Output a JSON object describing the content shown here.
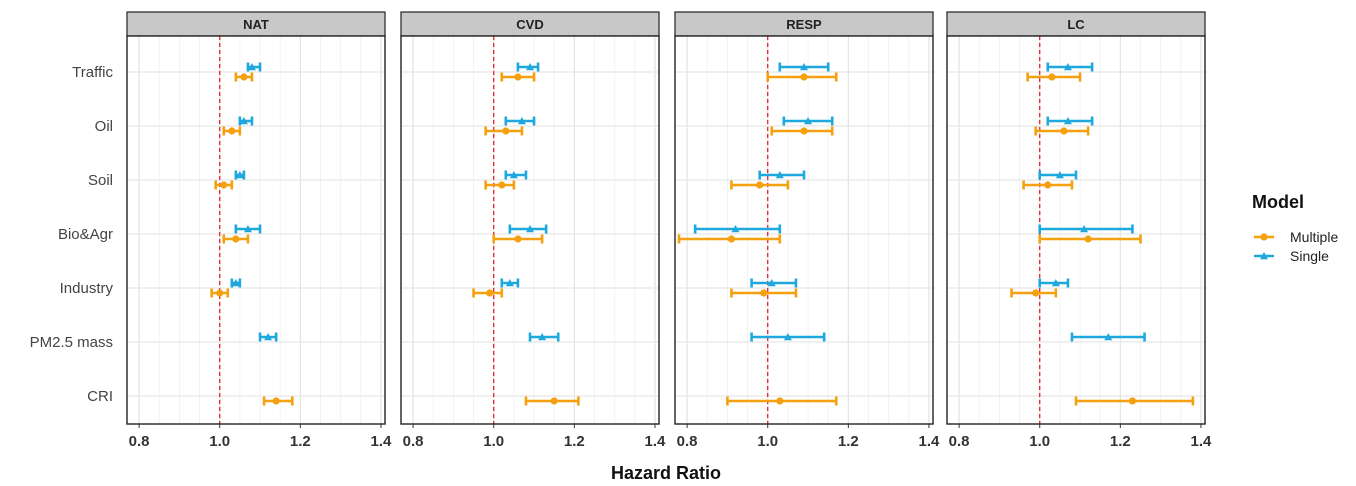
{
  "chart_data": {
    "type": "forest",
    "xlabel": "Hazard Ratio",
    "xlim": [
      0.77,
      1.41
    ],
    "x_ticks": [
      0.8,
      1.0,
      1.2,
      1.4
    ],
    "x_tick_labels": [
      "0.8",
      "1.0",
      "1.2",
      "1.4"
    ],
    "reference_line": 1.0,
    "reference_line_color": "#e8232a",
    "grid": true,
    "categories": [
      "Traffic",
      "Oil",
      "Soil",
      "Bio&Agr",
      "Industry",
      "PM2.5 mass",
      "CRI"
    ],
    "legend": {
      "title": "Model",
      "placement": "right",
      "entries": [
        {
          "label": "Multiple",
          "color": "#f5a00f",
          "marker": "circle"
        },
        {
          "label": "Single",
          "color": "#1ea8de",
          "marker": "triangle"
        }
      ]
    },
    "panels": [
      {
        "title": "NAT",
        "series": {
          "Multiple": [
            {
              "category": "Traffic",
              "est": 1.06,
              "lo": 1.04,
              "hi": 1.08
            },
            {
              "category": "Oil",
              "est": 1.03,
              "lo": 1.01,
              "hi": 1.05
            },
            {
              "category": "Soil",
              "est": 1.01,
              "lo": 0.99,
              "hi": 1.03
            },
            {
              "category": "Bio&Agr",
              "est": 1.04,
              "lo": 1.01,
              "hi": 1.07
            },
            {
              "category": "Industry",
              "est": 1.0,
              "lo": 0.98,
              "hi": 1.02
            },
            {
              "category": "CRI",
              "est": 1.14,
              "lo": 1.11,
              "hi": 1.18
            }
          ],
          "Single": [
            {
              "category": "Traffic",
              "est": 1.08,
              "lo": 1.07,
              "hi": 1.1
            },
            {
              "category": "Oil",
              "est": 1.06,
              "lo": 1.05,
              "hi": 1.08
            },
            {
              "category": "Soil",
              "est": 1.05,
              "lo": 1.04,
              "hi": 1.06
            },
            {
              "category": "Bio&Agr",
              "est": 1.07,
              "lo": 1.04,
              "hi": 1.1
            },
            {
              "category": "Industry",
              "est": 1.04,
              "lo": 1.03,
              "hi": 1.05
            },
            {
              "category": "PM2.5 mass",
              "est": 1.12,
              "lo": 1.1,
              "hi": 1.14
            }
          ]
        }
      },
      {
        "title": "CVD",
        "series": {
          "Multiple": [
            {
              "category": "Traffic",
              "est": 1.06,
              "lo": 1.02,
              "hi": 1.1
            },
            {
              "category": "Oil",
              "est": 1.03,
              "lo": 0.98,
              "hi": 1.07
            },
            {
              "category": "Soil",
              "est": 1.02,
              "lo": 0.98,
              "hi": 1.05
            },
            {
              "category": "Bio&Agr",
              "est": 1.06,
              "lo": 1.0,
              "hi": 1.12
            },
            {
              "category": "Industry",
              "est": 0.99,
              "lo": 0.95,
              "hi": 1.02
            },
            {
              "category": "CRI",
              "est": 1.15,
              "lo": 1.08,
              "hi": 1.21
            }
          ],
          "Single": [
            {
              "category": "Traffic",
              "est": 1.09,
              "lo": 1.06,
              "hi": 1.11
            },
            {
              "category": "Oil",
              "est": 1.07,
              "lo": 1.03,
              "hi": 1.1
            },
            {
              "category": "Soil",
              "est": 1.05,
              "lo": 1.03,
              "hi": 1.08
            },
            {
              "category": "Bio&Agr",
              "est": 1.09,
              "lo": 1.04,
              "hi": 1.13
            },
            {
              "category": "Industry",
              "est": 1.04,
              "lo": 1.02,
              "hi": 1.06
            },
            {
              "category": "PM2.5 mass",
              "est": 1.12,
              "lo": 1.09,
              "hi": 1.16
            }
          ]
        }
      },
      {
        "title": "RESP",
        "series": {
          "Multiple": [
            {
              "category": "Traffic",
              "est": 1.09,
              "lo": 1.0,
              "hi": 1.17
            },
            {
              "category": "Oil",
              "est": 1.09,
              "lo": 1.01,
              "hi": 1.16
            },
            {
              "category": "Soil",
              "est": 0.98,
              "lo": 0.91,
              "hi": 1.05
            },
            {
              "category": "Bio&Agr",
              "est": 0.91,
              "lo": 0.78,
              "hi": 1.03
            },
            {
              "category": "Industry",
              "est": 0.99,
              "lo": 0.91,
              "hi": 1.07
            },
            {
              "category": "CRI",
              "est": 1.03,
              "lo": 0.9,
              "hi": 1.17
            }
          ],
          "Single": [
            {
              "category": "Traffic",
              "est": 1.09,
              "lo": 1.03,
              "hi": 1.15
            },
            {
              "category": "Oil",
              "est": 1.1,
              "lo": 1.04,
              "hi": 1.16
            },
            {
              "category": "Soil",
              "est": 1.03,
              "lo": 0.98,
              "hi": 1.09
            },
            {
              "category": "Bio&Agr",
              "est": 0.92,
              "lo": 0.82,
              "hi": 1.03
            },
            {
              "category": "Industry",
              "est": 1.01,
              "lo": 0.96,
              "hi": 1.07
            },
            {
              "category": "PM2.5 mass",
              "est": 1.05,
              "lo": 0.96,
              "hi": 1.14
            }
          ]
        }
      },
      {
        "title": "LC",
        "series": {
          "Multiple": [
            {
              "category": "Traffic",
              "est": 1.03,
              "lo": 0.97,
              "hi": 1.1
            },
            {
              "category": "Oil",
              "est": 1.06,
              "lo": 0.99,
              "hi": 1.12
            },
            {
              "category": "Soil",
              "est": 1.02,
              "lo": 0.96,
              "hi": 1.08
            },
            {
              "category": "Bio&Agr",
              "est": 1.12,
              "lo": 1.0,
              "hi": 1.25
            },
            {
              "category": "Industry",
              "est": 0.99,
              "lo": 0.93,
              "hi": 1.04
            },
            {
              "category": "CRI",
              "est": 1.23,
              "lo": 1.09,
              "hi": 1.38
            }
          ],
          "Single": [
            {
              "category": "Traffic",
              "est": 1.07,
              "lo": 1.02,
              "hi": 1.13
            },
            {
              "category": "Oil",
              "est": 1.07,
              "lo": 1.02,
              "hi": 1.13
            },
            {
              "category": "Soil",
              "est": 1.05,
              "lo": 1.0,
              "hi": 1.09
            },
            {
              "category": "Bio&Agr",
              "est": 1.11,
              "lo": 1.0,
              "hi": 1.23
            },
            {
              "category": "Industry",
              "est": 1.04,
              "lo": 1.0,
              "hi": 1.07
            },
            {
              "category": "PM2.5 mass",
              "est": 1.17,
              "lo": 1.08,
              "hi": 1.26
            }
          ]
        }
      }
    ]
  }
}
